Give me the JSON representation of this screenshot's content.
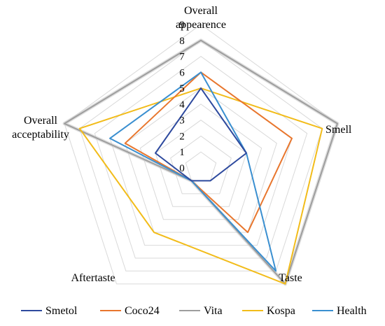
{
  "chart_data": {
    "type": "radar",
    "axes": [
      [
        "Overall",
        "appearence"
      ],
      [
        "Smell"
      ],
      [
        "Taste"
      ],
      [
        "Aftertaste"
      ],
      [
        "Overall",
        "acceptability"
      ]
    ],
    "ticks": [
      "0",
      "1",
      "2",
      "3",
      "4",
      "5",
      "6",
      "7",
      "8",
      "9"
    ],
    "range": [
      0,
      9
    ],
    "grid": true,
    "legend_position": "bottom",
    "series": [
      {
        "name": "Smetol",
        "color": "#2e4a9e",
        "values": [
          5,
          3,
          1,
          1,
          3
        ]
      },
      {
        "name": "Coco24",
        "color": "#e8762d",
        "values": [
          6,
          6,
          5,
          1,
          5
        ]
      },
      {
        "name": "Vita",
        "color": "#9e9e9e",
        "values": [
          8,
          9,
          9,
          1,
          9
        ]
      },
      {
        "name": "Kospa",
        "color": "#f2bc1a",
        "values": [
          5,
          8,
          9,
          5,
          8
        ]
      },
      {
        "name": "Health",
        "color": "#3a8fd0",
        "values": [
          6,
          3,
          8,
          1,
          6
        ]
      }
    ]
  }
}
